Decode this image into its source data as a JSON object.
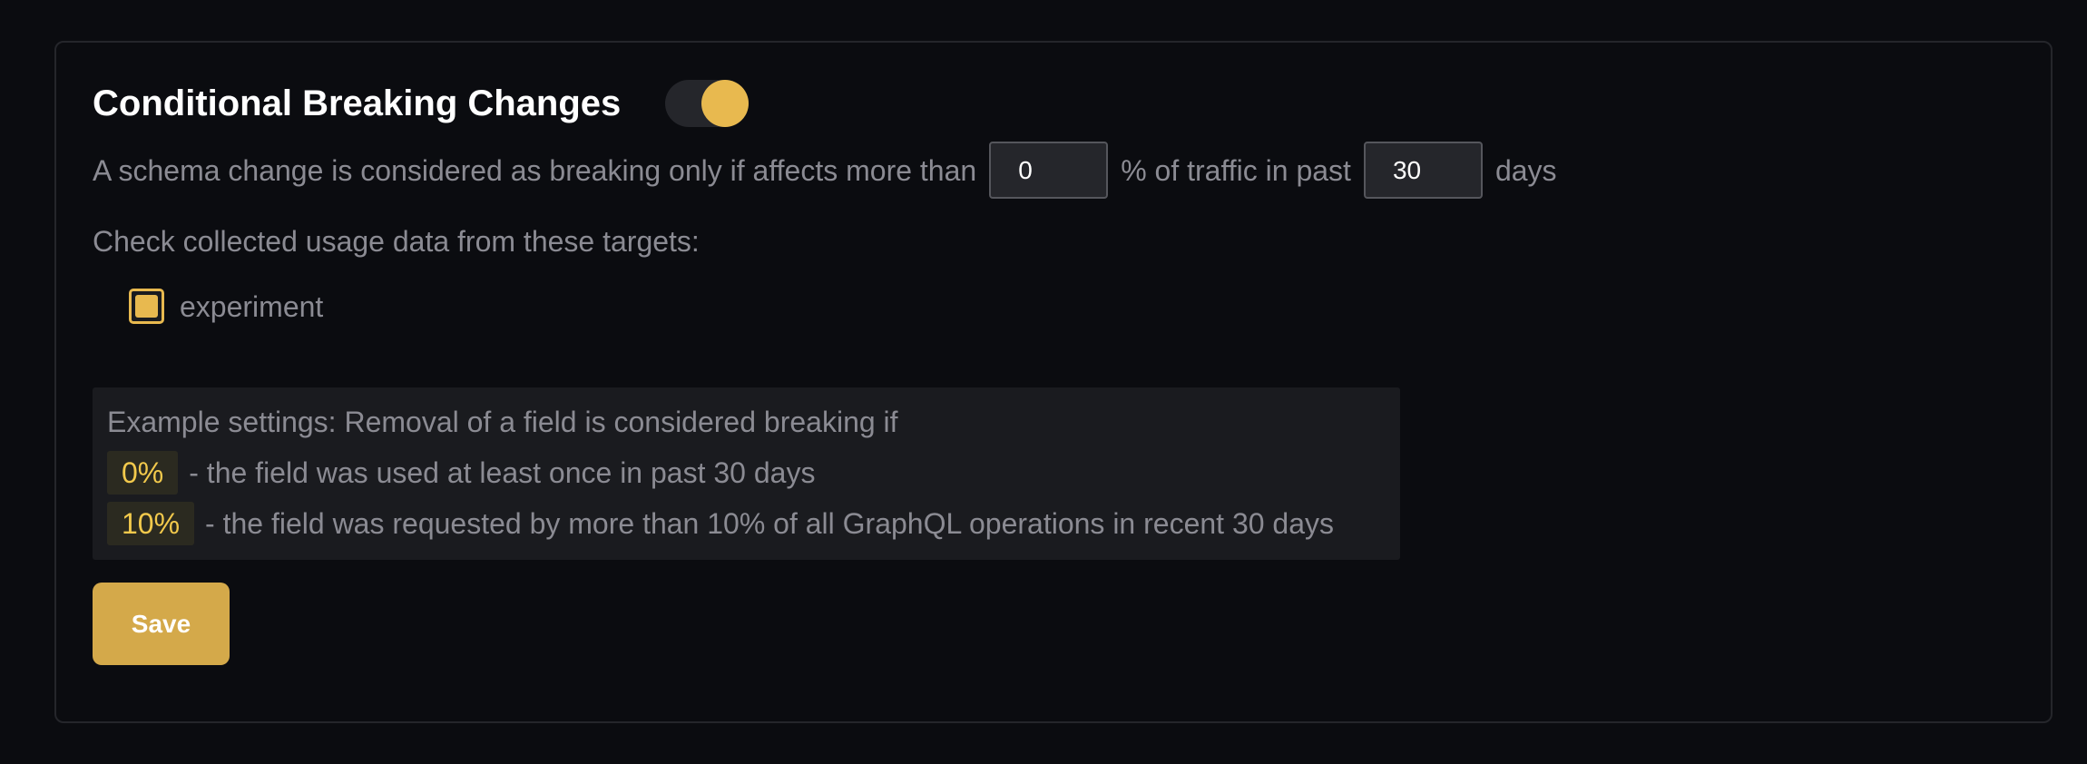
{
  "section": {
    "title": "Conditional Breaking Changes",
    "enabled": true,
    "accent_color": "#e8b94f"
  },
  "rule": {
    "prefix": "A schema change is considered as breaking only if affects more than",
    "percentage_value": "0",
    "middle": "% of traffic in past",
    "days_value": "30",
    "suffix": "days"
  },
  "targets": {
    "label": "Check collected usage data from these targets:",
    "items": [
      {
        "label": "experiment",
        "checked": true
      }
    ]
  },
  "example": {
    "intro": "Example settings: Removal of a field is considered breaking if",
    "lines": [
      {
        "badge": "0%",
        "text": "- the field was used at least once in past 30 days"
      },
      {
        "badge": "10%",
        "text": "- the field was requested by more than 10% of all GraphQL operations in recent 30 days"
      }
    ]
  },
  "save_label": "Save"
}
